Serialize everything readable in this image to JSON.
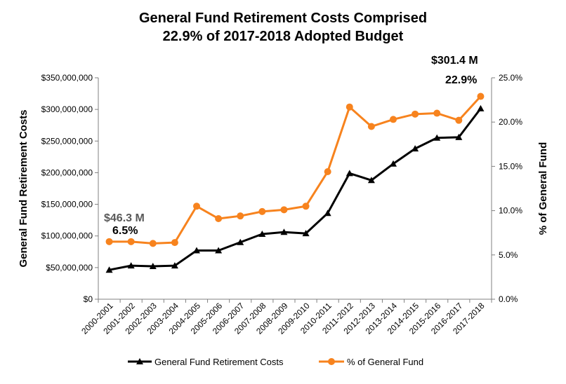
{
  "chart_data": {
    "type": "line",
    "title_lines": [
      "General Fund Retirement Costs Comprised",
      "22.9% of 2017-2018 Adopted Budget"
    ],
    "categories": [
      "2000-2001",
      "2001-2002",
      "2002-2003",
      "2003-2004",
      "2004-2005",
      "2005-2006",
      "2006-2007",
      "2007-2008",
      "2008-2009",
      "2009-2010",
      "2010-2011",
      "2011-2012",
      "2012-2013",
      "2013-2014",
      "2014-2015",
      "2015-2016",
      "2016-2017",
      "2017-2018"
    ],
    "series": [
      {
        "name": "General Fund Retirement Costs",
        "axis": "left",
        "color": "#000000",
        "marker": "triangle",
        "values": [
          46.3,
          53,
          52,
          53,
          77,
          77,
          90,
          103,
          106,
          104,
          136,
          199,
          188,
          214,
          238,
          255,
          256,
          301.4
        ]
      },
      {
        "name": "% of General Fund",
        "axis": "right",
        "color": "#F7831E",
        "marker": "circle",
        "values": [
          6.5,
          6.5,
          6.3,
          6.4,
          10.5,
          9.1,
          9.4,
          9.9,
          10.1,
          10.5,
          14.4,
          21.7,
          19.5,
          20.3,
          20.9,
          21.0,
          20.2,
          22.9
        ]
      }
    ],
    "value_units_left": "millions of dollars",
    "ylabel": "General Fund Retirement Costs",
    "ylabel_right": "% of General Fund",
    "ylim": [
      0,
      350
    ],
    "ylim_right": [
      0,
      25
    ],
    "yticks": [
      "$0",
      "$50,000,000",
      "$100,000,000",
      "$150,000,000",
      "$200,000,000",
      "$250,000,000",
      "$300,000,000",
      "$350,000,000"
    ],
    "yticks_right": [
      "0.0%",
      "5.0%",
      "10.0%",
      "15.0%",
      "20.0%",
      "25.0%"
    ],
    "grid": false,
    "legend_position": "bottom",
    "annotations": [
      {
        "text": "$46.3 M",
        "category": "2000-2001",
        "color": "#595959"
      },
      {
        "text": "6.5%",
        "category": "2000-2001",
        "color": "#000000"
      },
      {
        "text": "$301.4 M",
        "category": "2017-2018",
        "color": "#000000"
      },
      {
        "text": "22.9%",
        "category": "2017-2018",
        "color": "#000000"
      }
    ]
  }
}
